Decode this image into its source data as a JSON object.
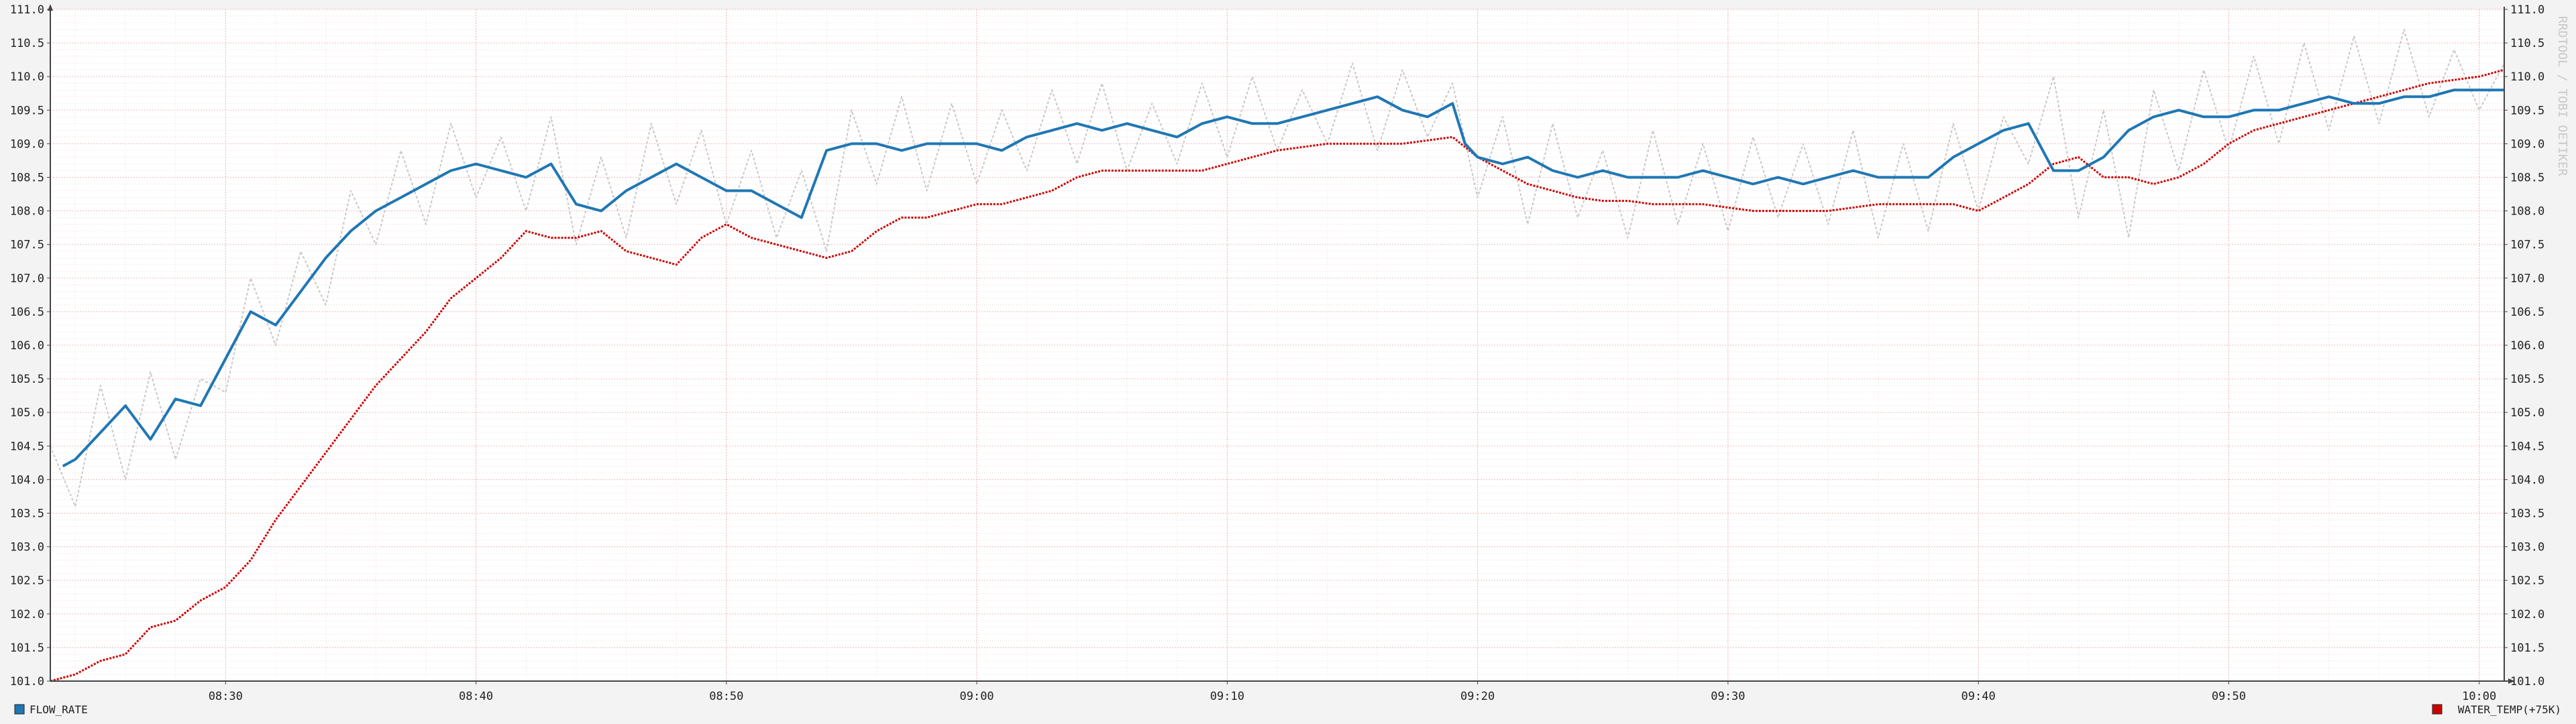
{
  "watermark": "RRDTOOL / TOBI OETIKER",
  "chart_data": {
    "type": "line",
    "xlabel": "",
    "ylabel": "",
    "ylim": [
      101.0,
      111.0
    ],
    "y_ticks": [
      "101.0",
      "101.5",
      "102.0",
      "102.5",
      "103.0",
      "103.5",
      "104.0",
      "104.5",
      "105.0",
      "105.5",
      "106.0",
      "106.5",
      "107.0",
      "107.5",
      "108.0",
      "108.5",
      "109.0",
      "109.5",
      "110.0",
      "110.5",
      "111.0"
    ],
    "x_range_min": [
      503,
      601
    ],
    "x_ticks": [
      {
        "label": "08:30",
        "min": 510
      },
      {
        "label": "08:40",
        "min": 520
      },
      {
        "label": "08:50",
        "min": 530
      },
      {
        "label": "09:00",
        "min": 540
      },
      {
        "label": "09:10",
        "min": 550
      },
      {
        "label": "09:20",
        "min": 560
      },
      {
        "label": "09:30",
        "min": 570
      },
      {
        "label": "09:40",
        "min": 580
      },
      {
        "label": "09:50",
        "min": 590
      },
      {
        "label": "10:00",
        "min": 600
      }
    ],
    "grid": true,
    "legend_position": "bottom",
    "series": [
      {
        "name": "FLOW_RATE",
        "color": "#1f77b4",
        "x_min": [
          503.5,
          504,
          505,
          506,
          507,
          508,
          509,
          510,
          511,
          512,
          513,
          514,
          515,
          516,
          517,
          518,
          519,
          520,
          521,
          522,
          523,
          524,
          525,
          526,
          527,
          528,
          529,
          530,
          531,
          532,
          533,
          534,
          535,
          536,
          537,
          538,
          539,
          540,
          541,
          542,
          543,
          544,
          545,
          546,
          547,
          548,
          549,
          550,
          551,
          552,
          553,
          554,
          555,
          556,
          557,
          558,
          559,
          559.5,
          560,
          561,
          562,
          563,
          564,
          565,
          566,
          567,
          568,
          569,
          570,
          571,
          572,
          573,
          574,
          575,
          576,
          577,
          578,
          579,
          580,
          581,
          582,
          583,
          584,
          585,
          586,
          587,
          588,
          589,
          590,
          591,
          592,
          593,
          594,
          595,
          596,
          597,
          598,
          599,
          600,
          601
        ],
        "values": [
          104.2,
          104.3,
          104.7,
          105.1,
          104.6,
          105.2,
          105.1,
          105.8,
          106.5,
          106.3,
          106.8,
          107.3,
          107.7,
          108.0,
          108.2,
          108.4,
          108.6,
          108.7,
          108.6,
          108.5,
          108.7,
          108.1,
          108.0,
          108.3,
          108.5,
          108.7,
          108.5,
          108.3,
          108.3,
          108.1,
          107.9,
          108.9,
          109.0,
          109.0,
          108.9,
          109.0,
          109.0,
          109.0,
          108.9,
          109.1,
          109.2,
          109.3,
          109.2,
          109.3,
          109.2,
          109.1,
          109.3,
          109.4,
          109.3,
          109.3,
          109.4,
          109.5,
          109.6,
          109.7,
          109.5,
          109.4,
          109.6,
          109.0,
          108.8,
          108.7,
          108.8,
          108.6,
          108.5,
          108.6,
          108.5,
          108.5,
          108.5,
          108.6,
          108.5,
          108.4,
          108.5,
          108.4,
          108.5,
          108.6,
          108.5,
          108.5,
          108.5,
          108.8,
          109.0,
          109.2,
          109.3,
          108.6,
          108.6,
          108.8,
          109.2,
          109.4,
          109.5,
          109.4,
          109.4,
          109.5,
          109.5,
          109.6,
          109.7,
          109.6,
          109.6,
          109.7,
          109.7,
          109.8,
          109.8,
          109.8
        ]
      },
      {
        "name": "WATER_TEMP(+75K)",
        "color": "#cc0000",
        "x_min": [
          503,
          504,
          505,
          506,
          507,
          508,
          509,
          510,
          511,
          512,
          513,
          514,
          515,
          516,
          517,
          518,
          519,
          520,
          521,
          522,
          523,
          524,
          525,
          526,
          527,
          528,
          529,
          530,
          531,
          532,
          533,
          534,
          535,
          536,
          537,
          538,
          539,
          540,
          541,
          542,
          543,
          544,
          545,
          546,
          547,
          548,
          549,
          550,
          551,
          552,
          553,
          554,
          555,
          556,
          557,
          558,
          559,
          560,
          561,
          562,
          563,
          564,
          565,
          566,
          567,
          568,
          569,
          570,
          571,
          572,
          573,
          574,
          575,
          576,
          577,
          578,
          579,
          580,
          581,
          582,
          583,
          584,
          585,
          586,
          587,
          588,
          589,
          590,
          591,
          592,
          593,
          594,
          595,
          596,
          597,
          598,
          599,
          600,
          601
        ],
        "values": [
          101.0,
          101.1,
          101.3,
          101.4,
          101.8,
          101.9,
          102.2,
          102.4,
          102.8,
          103.4,
          103.9,
          104.4,
          104.9,
          105.4,
          105.8,
          106.2,
          106.7,
          107.0,
          107.3,
          107.7,
          107.6,
          107.6,
          107.7,
          107.4,
          107.3,
          107.2,
          107.6,
          107.8,
          107.6,
          107.5,
          107.4,
          107.3,
          107.4,
          107.7,
          107.9,
          107.9,
          108.0,
          108.1,
          108.1,
          108.2,
          108.3,
          108.5,
          108.6,
          108.6,
          108.6,
          108.6,
          108.6,
          108.7,
          108.8,
          108.9,
          108.95,
          109.0,
          109.0,
          109.0,
          109.0,
          109.05,
          109.1,
          108.8,
          108.6,
          108.4,
          108.3,
          108.2,
          108.15,
          108.15,
          108.1,
          108.1,
          108.1,
          108.05,
          108.0,
          108.0,
          108.0,
          108.0,
          108.05,
          108.1,
          108.1,
          108.1,
          108.1,
          108.0,
          108.2,
          108.4,
          108.7,
          108.8,
          108.5,
          108.5,
          108.4,
          108.5,
          108.7,
          109.0,
          109.2,
          109.3,
          109.4,
          109.5,
          109.6,
          109.7,
          109.8,
          109.9,
          109.95,
          110.0,
          110.1,
          110.2
        ]
      },
      {
        "name": "",
        "color": "#c8c8c8",
        "x_min": [
          503,
          504,
          505,
          506,
          507,
          508,
          509,
          510,
          511,
          512,
          513,
          514,
          515,
          516,
          517,
          518,
          519,
          520,
          521,
          522,
          523,
          524,
          525,
          526,
          527,
          528,
          529,
          530,
          531,
          532,
          533,
          534,
          535,
          536,
          537,
          538,
          539,
          540,
          541,
          542,
          543,
          544,
          545,
          546,
          547,
          548,
          549,
          550,
          551,
          552,
          553,
          554,
          555,
          556,
          557,
          558,
          559,
          560,
          561,
          562,
          563,
          564,
          565,
          566,
          567,
          568,
          569,
          570,
          571,
          572,
          573,
          574,
          575,
          576,
          577,
          578,
          579,
          580,
          581,
          582,
          583,
          584,
          585,
          586,
          587,
          588,
          589,
          590,
          591,
          592,
          593,
          594,
          595,
          596,
          597,
          598,
          599,
          600,
          601
        ],
        "values": [
          104.5,
          103.6,
          105.4,
          104.0,
          105.6,
          104.3,
          105.5,
          105.3,
          107.0,
          106.0,
          107.4,
          106.6,
          108.3,
          107.5,
          108.9,
          107.8,
          109.3,
          108.2,
          109.1,
          108.0,
          109.4,
          107.5,
          108.8,
          107.6,
          109.3,
          108.1,
          109.2,
          107.8,
          108.9,
          107.6,
          108.6,
          107.4,
          109.5,
          108.4,
          109.7,
          108.3,
          109.6,
          108.4,
          109.5,
          108.6,
          109.8,
          108.7,
          109.9,
          108.6,
          109.6,
          108.7,
          109.9,
          108.8,
          110.0,
          108.9,
          109.8,
          109.0,
          110.2,
          108.9,
          110.1,
          109.1,
          109.9,
          108.2,
          109.4,
          107.8,
          109.3,
          107.9,
          108.9,
          107.6,
          109.2,
          107.8,
          109.0,
          107.7,
          109.1,
          107.9,
          109.0,
          107.8,
          109.2,
          107.6,
          109.0,
          107.7,
          109.3,
          108.0,
          109.4,
          108.7,
          110.0,
          107.9,
          109.5,
          107.6,
          109.8,
          108.6,
          110.1,
          108.9,
          110.3,
          109.0,
          110.5,
          109.2,
          110.6,
          109.3,
          110.7,
          109.4,
          110.4,
          109.5,
          110.2,
          109.6
        ]
      }
    ]
  }
}
